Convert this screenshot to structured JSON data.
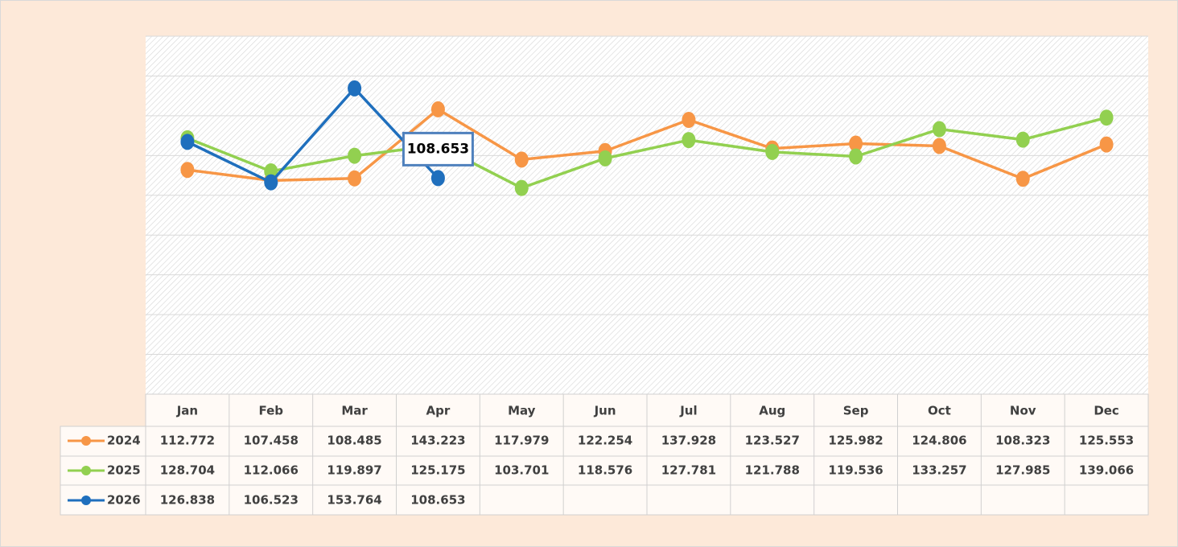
{
  "chart_data": {
    "type": "line",
    "categories": [
      "Jan",
      "Feb",
      "Mar",
      "Apr",
      "May",
      "Jun",
      "Jul",
      "Aug",
      "Sep",
      "Oct",
      "Nov",
      "Dec"
    ],
    "series": [
      {
        "name": "2024",
        "color": "#f79646",
        "values": [
          112.772,
          107.458,
          108.485,
          143.223,
          117.979,
          122.254,
          137.928,
          123.527,
          125.982,
          124.806,
          108.323,
          125.553
        ]
      },
      {
        "name": "2025",
        "color": "#92d050",
        "values": [
          128.704,
          112.066,
          119.897,
          125.175,
          103.701,
          118.576,
          127.781,
          121.788,
          119.536,
          133.257,
          127.985,
          139.066
        ]
      },
      {
        "name": "2026",
        "color": "#1f6fbd",
        "values": [
          126.838,
          106.523,
          153.764,
          108.653,
          null,
          null,
          null,
          null,
          null,
          null,
          null,
          null
        ]
      }
    ],
    "ylim": [
      0,
      180
    ],
    "yticks": [
      0,
      20,
      40,
      60,
      80,
      100,
      120,
      140,
      160,
      180
    ],
    "grid": true
  }
}
